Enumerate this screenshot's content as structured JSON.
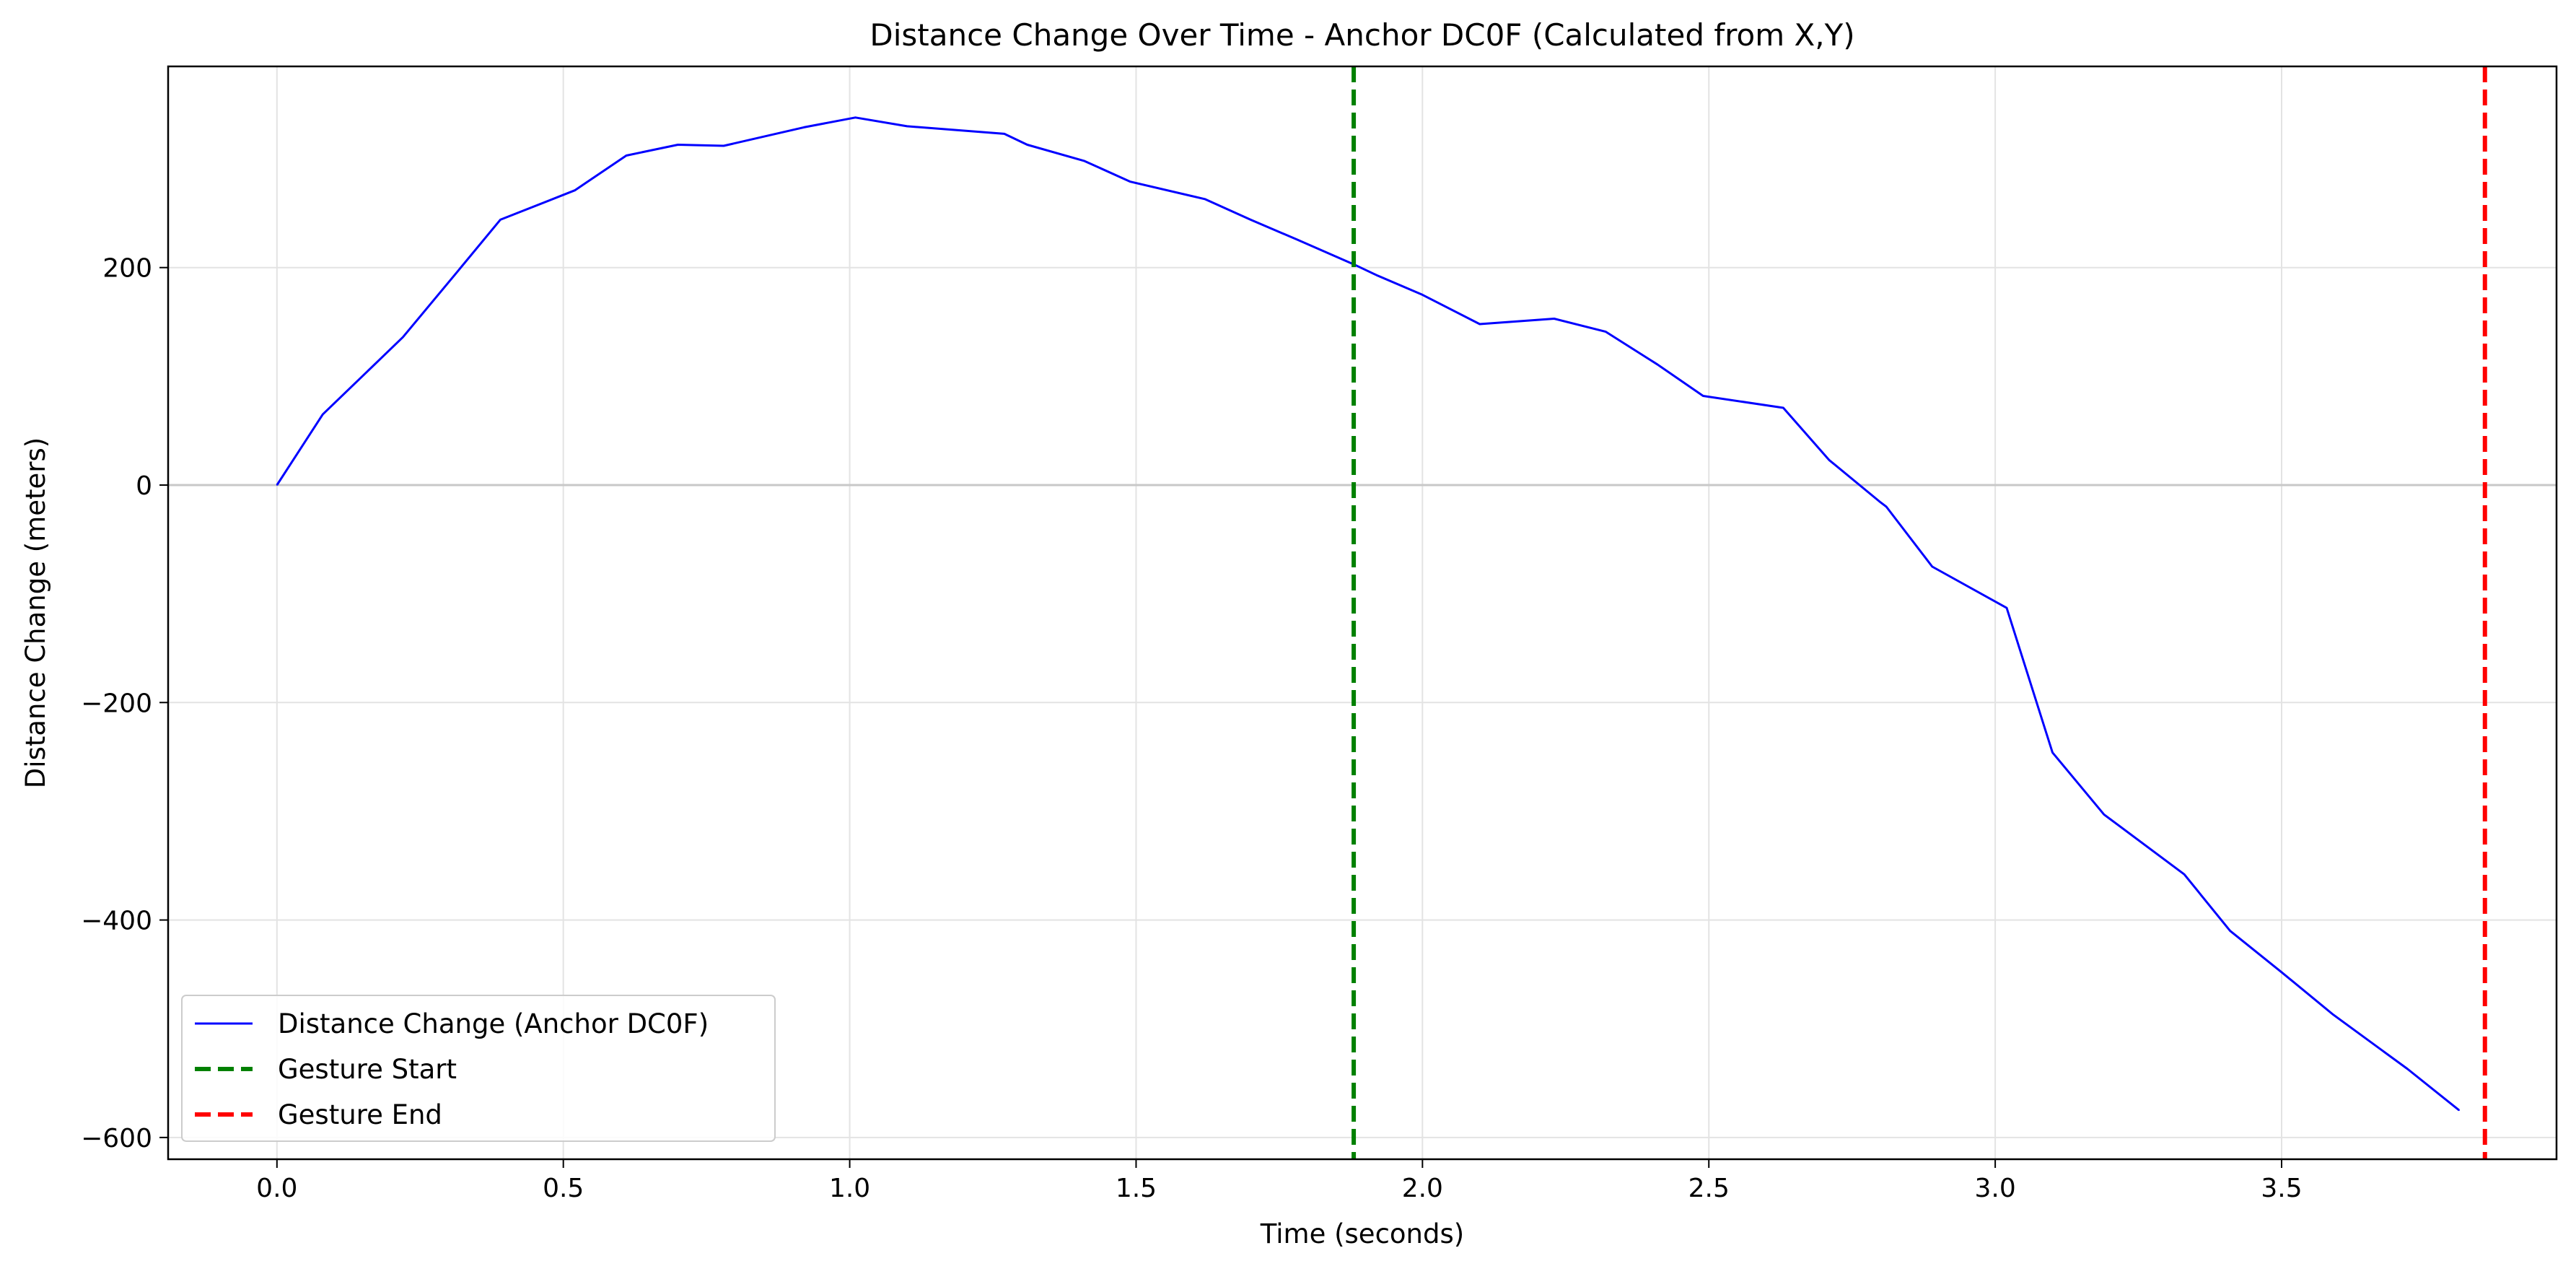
{
  "chart_data": {
    "type": "line",
    "title": "Distance Change Over Time - Anchor DC0F (Calculated from X,Y)",
    "xlabel": "Time (seconds)",
    "ylabel": "Distance Change (meters)",
    "xlim": [
      -0.19,
      3.98
    ],
    "ylim": [
      -620,
      385
    ],
    "xticks": [
      0.0,
      0.5,
      1.0,
      1.5,
      2.0,
      2.5,
      3.0,
      3.5
    ],
    "xtick_labels": [
      "0.0",
      "0.5",
      "1.0",
      "1.5",
      "2.0",
      "2.5",
      "3.0",
      "3.5"
    ],
    "yticks": [
      -600,
      -400,
      -200,
      0,
      200
    ],
    "ytick_labels": [
      "−600",
      "−400",
      "−200",
      "0",
      "200"
    ],
    "grid": true,
    "legend_position": "lower-left",
    "series": [
      {
        "name": "Distance Change (Anchor DC0F)",
        "color": "#0000ff",
        "x": [
          0.0,
          0.08,
          0.22,
          0.31,
          0.39,
          0.52,
          0.61,
          0.7,
          0.78,
          0.92,
          1.01,
          1.1,
          1.27,
          1.31,
          1.41,
          1.49,
          1.62,
          1.7,
          1.78,
          1.88,
          1.92,
          2.0,
          2.1,
          2.23,
          2.32,
          2.41,
          2.49,
          2.63,
          2.71,
          2.8,
          2.81,
          2.89,
          3.02,
          3.1,
          3.19,
          3.33,
          3.41,
          3.5,
          3.59,
          3.72,
          3.81
        ],
        "y": [
          0,
          65,
          136,
          193,
          244,
          271,
          303,
          313,
          312,
          329,
          338,
          330,
          323,
          313,
          298,
          279,
          263,
          244,
          226,
          203,
          193,
          175,
          148,
          153,
          141,
          111,
          82,
          71,
          23,
          -16,
          -20,
          -75,
          -113,
          -246,
          -303,
          -358,
          -410,
          -448,
          -487,
          -537,
          -575
        ]
      }
    ],
    "vlines": [
      {
        "name": "Gesture Start",
        "x": 1.88,
        "color": "#008000",
        "style": "dashed"
      },
      {
        "name": "Gesture End",
        "x": 3.855,
        "color": "#ff0000",
        "style": "dashed"
      }
    ],
    "hline": {
      "y": 0,
      "color": "#c8c8c8"
    }
  }
}
